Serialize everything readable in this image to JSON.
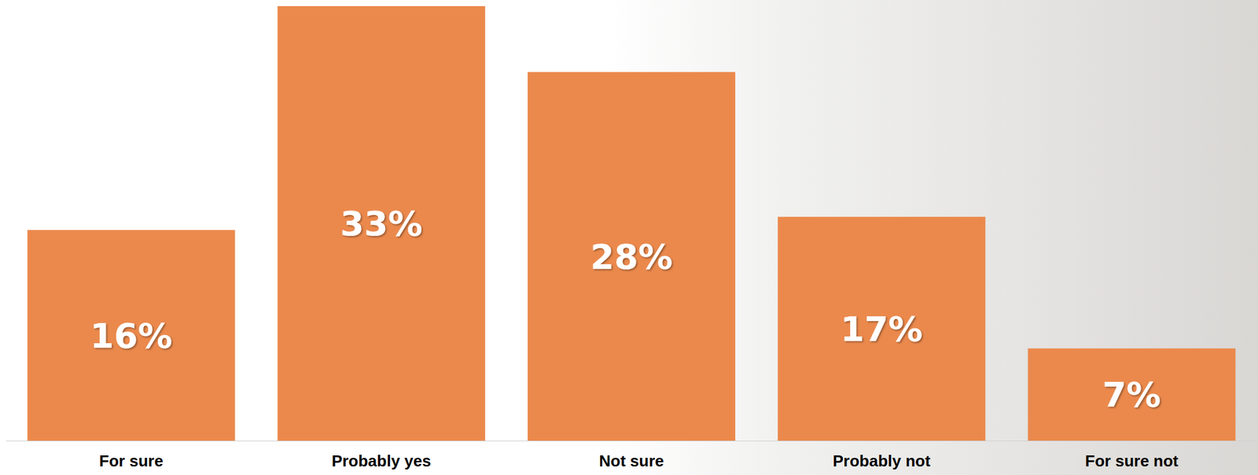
{
  "chart_data": {
    "type": "bar",
    "categories": [
      "For sure",
      "Probably yes",
      "Not sure",
      "Probably not",
      "For sure not"
    ],
    "values": [
      16,
      33,
      28,
      17,
      7
    ],
    "value_labels": [
      "16%",
      "33%",
      "28%",
      "17%",
      "7%"
    ],
    "color": "#eb894c",
    "ylim": [
      0,
      33
    ],
    "grid": false,
    "data_labels": true,
    "tick_labels": "x"
  }
}
